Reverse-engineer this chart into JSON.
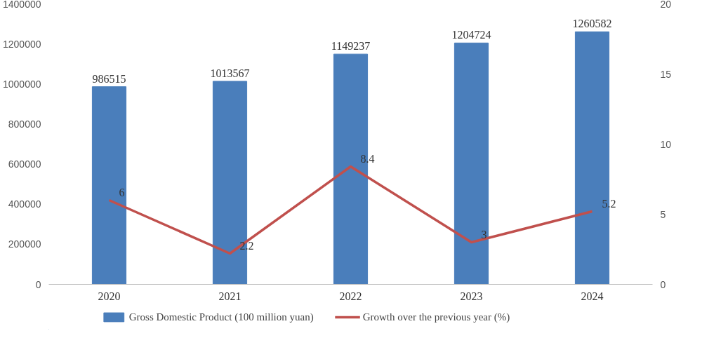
{
  "chart_data": {
    "type": "bar",
    "categories": [
      "2020",
      "2021",
      "2022",
      "2023",
      "2024"
    ],
    "series": [
      {
        "name": "Gross Domestic Product (100 million yuan)",
        "color": "#4a7ebb",
        "values": [
          986515,
          1013567,
          1149237,
          1204724,
          1260582
        ]
      },
      {
        "name": "Growth over the previous year (%)",
        "type": "line",
        "axis": "y2",
        "color": "#c0504d",
        "values": [
          6,
          2.2,
          8.4,
          3,
          5.2
        ]
      }
    ],
    "ylim": [
      0,
      1400000
    ],
    "yticks": [
      0,
      200000,
      400000,
      600000,
      800000,
      1000000,
      1200000,
      1400000
    ],
    "y2lim": [
      0,
      20
    ],
    "y2ticks": [
      0,
      5,
      10,
      15,
      20
    ],
    "data_labels": true,
    "legend": "bottom",
    "grid": false
  }
}
